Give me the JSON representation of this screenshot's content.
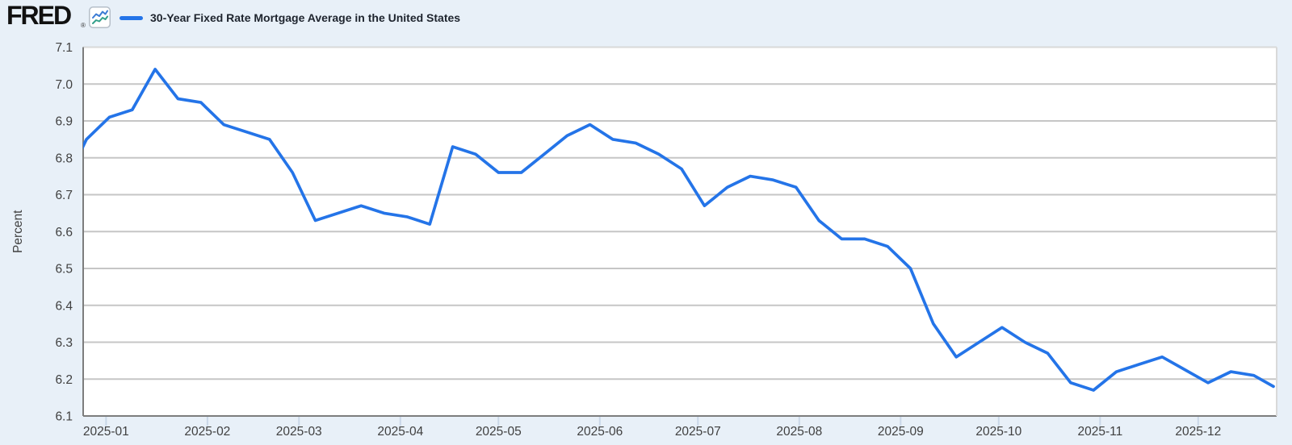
{
  "header": {
    "logo_text": "FRED",
    "registered_mark": "®",
    "series_title": "30-Year Fixed Rate Mortgage Average in the United States"
  },
  "colors": {
    "page_bg": "#e8f0f8",
    "plot_bg": "#ffffff",
    "line": "#2474e8",
    "gridline": "#c6c6c6",
    "axis_dark_border": "#7d7d7d",
    "axis_light_border": "#d9d9d9",
    "month_tick": "#c9d7e8",
    "axis_text": "#404040",
    "icon_blue": "#3b7bd4",
    "icon_teal": "#34a08c"
  },
  "chart_data": {
    "type": "line",
    "title": "30-Year Fixed Rate Mortgage Average in the United States",
    "ylabel": "Percent",
    "ylim": [
      6.1,
      7.1
    ],
    "y_ticks": [
      7.1,
      7.0,
      6.9,
      6.8,
      6.7,
      6.6,
      6.5,
      6.4,
      6.3,
      6.2,
      6.1
    ],
    "x_tick_labels": [
      "2025-01",
      "2025-02",
      "2025-03",
      "2025-04",
      "2025-05",
      "2025-06",
      "2025-07",
      "2025-08",
      "2025-09",
      "2025-10",
      "2025-11",
      "2025-12"
    ],
    "x_range": [
      "2024-12-25",
      "2025-12-25"
    ],
    "grid": "horizontal-only",
    "legend_position": "top-left",
    "series": [
      {
        "name": "30-Year Fixed Rate Mortgage Average in the United States",
        "units": "Percent",
        "color": "#2474e8",
        "points": [
          [
            "2024-12-19",
            6.72
          ],
          [
            "2024-12-26",
            6.85
          ],
          [
            "2025-01-02",
            6.91
          ],
          [
            "2025-01-09",
            6.93
          ],
          [
            "2025-01-16",
            7.04
          ],
          [
            "2025-01-23",
            6.96
          ],
          [
            "2025-01-30",
            6.95
          ],
          [
            "2025-02-06",
            6.89
          ],
          [
            "2025-02-13",
            6.87
          ],
          [
            "2025-02-20",
            6.85
          ],
          [
            "2025-02-27",
            6.76
          ],
          [
            "2025-03-06",
            6.63
          ],
          [
            "2025-03-13",
            6.65
          ],
          [
            "2025-03-20",
            6.67
          ],
          [
            "2025-03-27",
            6.65
          ],
          [
            "2025-04-03",
            6.64
          ],
          [
            "2025-04-10",
            6.62
          ],
          [
            "2025-04-17",
            6.83
          ],
          [
            "2025-04-24",
            6.81
          ],
          [
            "2025-05-01",
            6.76
          ],
          [
            "2025-05-08",
            6.76
          ],
          [
            "2025-05-15",
            6.81
          ],
          [
            "2025-05-22",
            6.86
          ],
          [
            "2025-05-29",
            6.89
          ],
          [
            "2025-06-05",
            6.85
          ],
          [
            "2025-06-12",
            6.84
          ],
          [
            "2025-06-19",
            6.81
          ],
          [
            "2025-06-26",
            6.77
          ],
          [
            "2025-07-03",
            6.67
          ],
          [
            "2025-07-10",
            6.72
          ],
          [
            "2025-07-17",
            6.75
          ],
          [
            "2025-07-24",
            6.74
          ],
          [
            "2025-07-31",
            6.72
          ],
          [
            "2025-08-07",
            6.63
          ],
          [
            "2025-08-14",
            6.58
          ],
          [
            "2025-08-21",
            6.58
          ],
          [
            "2025-08-28",
            6.56
          ],
          [
            "2025-09-04",
            6.5
          ],
          [
            "2025-09-11",
            6.35
          ],
          [
            "2025-09-18",
            6.26
          ],
          [
            "2025-09-25",
            6.3
          ],
          [
            "2025-10-02",
            6.34
          ],
          [
            "2025-10-09",
            6.3
          ],
          [
            "2025-10-16",
            6.27
          ],
          [
            "2025-10-23",
            6.19
          ],
          [
            "2025-10-30",
            6.17
          ],
          [
            "2025-11-06",
            6.22
          ],
          [
            "2025-11-13",
            6.24
          ],
          [
            "2025-11-20",
            6.26
          ],
          [
            "2025-11-26",
            6.23
          ],
          [
            "2025-12-04",
            6.19
          ],
          [
            "2025-12-11",
            6.22
          ],
          [
            "2025-12-18",
            6.21
          ],
          [
            "2025-12-24",
            6.18
          ]
        ]
      }
    ]
  }
}
